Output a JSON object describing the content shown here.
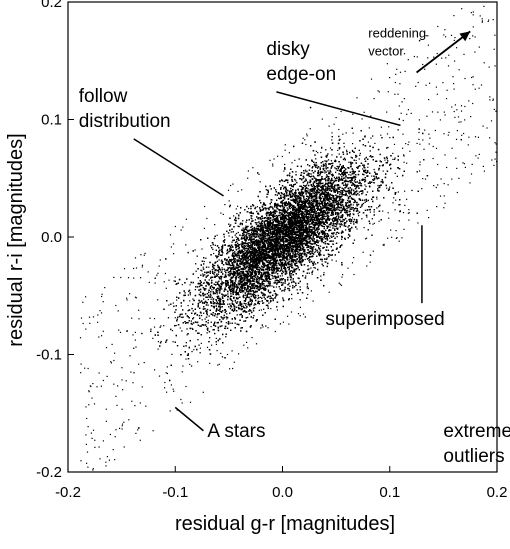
{
  "chart_data": {
    "type": "scatter",
    "title": "",
    "xlabel": "residual g-r [magnitudes]",
    "ylabel": "residual r-i [magnitudes]",
    "xlim": [
      -0.2,
      0.2
    ],
    "ylim": [
      -0.2,
      0.2
    ],
    "x_ticks": [
      -0.2,
      -0.1,
      0.0,
      0.1,
      0.2
    ],
    "x_tick_labels": [
      "-0.2",
      "-0.1",
      "0.0",
      "0.1",
      "0.2"
    ],
    "y_ticks": [
      -0.2,
      -0.1,
      0.0,
      0.1,
      0.2
    ],
    "y_tick_labels": [
      "-0.2",
      "-0.1",
      "0.0",
      "0.1",
      "0.2"
    ],
    "grid": false,
    "point_color": "#000000",
    "distribution": {
      "center": [
        0.0,
        0.0
      ],
      "major_axis_slope": 0.85,
      "major_sigma": 0.048,
      "minor_sigma": 0.016,
      "description_points": [
        {
          "x": -0.1,
          "y": -0.14
        },
        {
          "x": -0.05,
          "y": -0.07
        },
        {
          "x": 0.0,
          "y": 0.0
        },
        {
          "x": 0.05,
          "y": 0.05
        },
        {
          "x": 0.1,
          "y": 0.08
        }
      ]
    },
    "annotations": [
      {
        "id": "disky",
        "lines": [
          "disky",
          "edge-on"
        ],
        "x": -0.015,
        "y": 0.155,
        "pointer_to": [
          0.11,
          0.095
        ]
      },
      {
        "id": "follow",
        "lines": [
          "follow",
          "distribution"
        ],
        "x": -0.19,
        "y": 0.115,
        "pointer_to": [
          -0.055,
          0.035
        ]
      },
      {
        "id": "superimposed",
        "lines": [
          "superimposed"
        ],
        "x": 0.04,
        "y": -0.075,
        "pointer_to": [
          0.13,
          0.01
        ]
      },
      {
        "id": "astars",
        "lines": [
          "A stars"
        ],
        "x": -0.07,
        "y": -0.17,
        "pointer_to": [
          -0.1,
          -0.145
        ]
      },
      {
        "id": "outliers",
        "lines": [
          "extreme",
          "outliers"
        ],
        "x": 0.15,
        "y": -0.17,
        "pointer_to": null
      },
      {
        "id": "reddening",
        "lines": [
          "reddening",
          "vector"
        ],
        "x": 0.08,
        "y": 0.17,
        "arrow_from": [
          0.125,
          0.14
        ],
        "arrow_to": [
          0.175,
          0.175
        ]
      }
    ]
  }
}
